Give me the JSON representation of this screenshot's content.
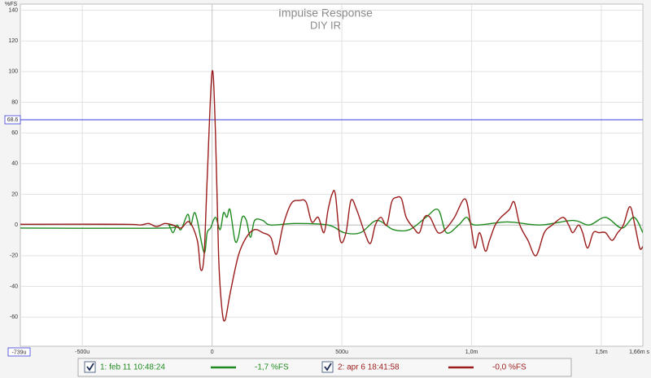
{
  "chart_data": {
    "type": "line",
    "title": "Impulse Response",
    "subtitle": "DIY IR",
    "y_label": "%FS",
    "xlim": [
      -739,
      1660
    ],
    "ylim": [
      -79,
      144
    ],
    "xticks": [
      {
        "value": -739,
        "label": "-739u"
      },
      {
        "value": -500,
        "label": "-500u"
      },
      0,
      {
        "value": 500,
        "label": "500u"
      },
      {
        "value": 1000,
        "label": "1,0m"
      },
      {
        "value": 1500,
        "label": "1,5m"
      },
      {
        "value": 1660,
        "label": "1,66m s"
      }
    ],
    "yticks": [
      -60,
      -40,
      -20,
      0,
      20,
      40,
      60,
      80,
      100,
      120,
      140
    ],
    "grid": true,
    "cursor_y": 68.6,
    "cursor_color": "#3c3cd8",
    "series": [
      {
        "name": "1: feb 11 10:48:24",
        "color": "#1f8a1f",
        "level": "-1,7 %FS",
        "x": [
          -739,
          -182,
          -167,
          -151,
          -135,
          -120,
          -94,
          -82,
          -69,
          -57,
          -31,
          -19,
          -6,
          13,
          31,
          44,
          57,
          69,
          88,
          101,
          116,
          132,
          148,
          164,
          195,
          226,
          321,
          447,
          509,
          572,
          635,
          698,
          761,
          824,
          871,
          903,
          950,
          981,
          1013,
          1138,
          1264,
          1390,
          1453,
          1516,
          1579,
          1626,
          1660
        ],
        "values": [
          -2,
          -2,
          0,
          -5,
          0,
          -3,
          7,
          0,
          8,
          3,
          -18,
          -5,
          -2,
          5,
          -3,
          8,
          5,
          10,
          -10,
          -8,
          5,
          3,
          -8,
          3,
          3,
          0,
          1,
          0,
          -5,
          -5,
          3,
          -3,
          -3,
          5,
          10,
          -5,
          0,
          5,
          0,
          2,
          0,
          3,
          0,
          5,
          -2,
          5,
          -5
        ]
      },
      {
        "name": "2: apr 6 18:41:58",
        "color": "#9b1c1c",
        "level": "-0,0 %FS",
        "x": [
          -739,
          -340,
          -277,
          -245,
          -214,
          -182,
          -151,
          -120,
          -88,
          -57,
          -44,
          -31,
          -19,
          0,
          13,
          25,
          38,
          50,
          69,
          101,
          132,
          164,
          195,
          226,
          248,
          274,
          305,
          336,
          362,
          384,
          409,
          431,
          447,
          462,
          475,
          494,
          516,
          535,
          557,
          588,
          610,
          629,
          651,
          673,
          692,
          711,
          730,
          748,
          777,
          799,
          818,
          840,
          871,
          903,
          934,
          975,
          997,
          1013,
          1031,
          1053,
          1069,
          1091,
          1113,
          1145,
          1164,
          1186,
          1217,
          1248,
          1280,
          1311,
          1352,
          1374,
          1390,
          1412,
          1428,
          1447,
          1469,
          1491,
          1516,
          1541,
          1563,
          1585,
          1610,
          1629,
          1648,
          1660
        ],
        "values": [
          0.5,
          0.5,
          0,
          1,
          -1,
          1,
          0,
          -2,
          2,
          -10,
          -29,
          -20,
          30,
          100,
          60,
          -20,
          -55,
          -62,
          -45,
          -20,
          -8,
          -3,
          -5,
          -8,
          -19,
          0,
          14,
          16,
          15,
          2,
          5,
          -5,
          10,
          20,
          20,
          -10,
          -5,
          16,
          10,
          -5,
          -12,
          0,
          5,
          0,
          15,
          18,
          17,
          5,
          -2,
          -5,
          5,
          5,
          -5,
          -2,
          5,
          17,
          0,
          -15,
          -5,
          -17,
          -10,
          0,
          5,
          10,
          15,
          0,
          -10,
          -20,
          -5,
          0,
          5,
          0,
          -5,
          0,
          -5,
          -15,
          -5,
          -5,
          -5,
          -10,
          -5,
          0,
          12,
          0,
          -15,
          -14
        ]
      }
    ]
  }
}
